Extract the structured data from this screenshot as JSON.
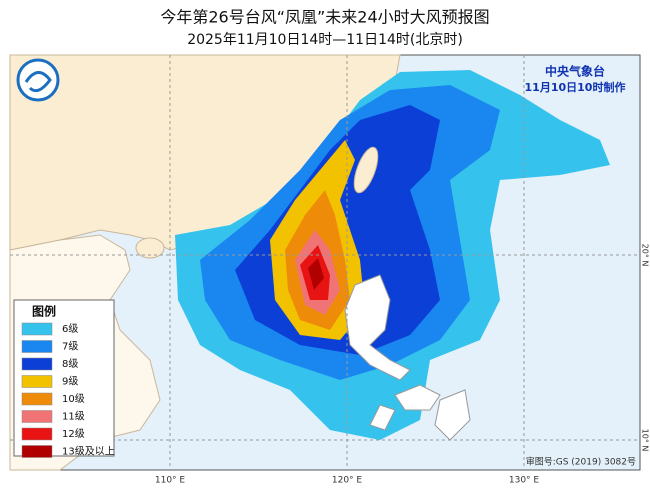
{
  "header": {
    "title": "今年第26号台风“凤凰”未来24小时大风预报图",
    "subtitle": "2025年11月10日14时—11日14时(北京时)"
  },
  "issuer": {
    "agency": "中央气象台",
    "issued": "11月10日10时制作"
  },
  "legend": {
    "title": "图例",
    "items": [
      {
        "label": "6级",
        "color": "#35c3ee"
      },
      {
        "label": "7级",
        "color": "#1a86f0"
      },
      {
        "label": "8级",
        "color": "#0b3fd6"
      },
      {
        "label": "9级",
        "color": "#f2c200"
      },
      {
        "label": "10级",
        "color": "#ee8c0a"
      },
      {
        "label": "11级",
        "color": "#f07474"
      },
      {
        "label": "12级",
        "color": "#e81414"
      },
      {
        "label": "13级及以上",
        "color": "#b00000"
      }
    ]
  },
  "axes": {
    "longitude": [
      "110° E",
      "120° E",
      "130° E"
    ],
    "latitude": [
      "20° N",
      "10° N"
    ]
  },
  "map_review": "审图号:GS (2019) 3082号"
}
